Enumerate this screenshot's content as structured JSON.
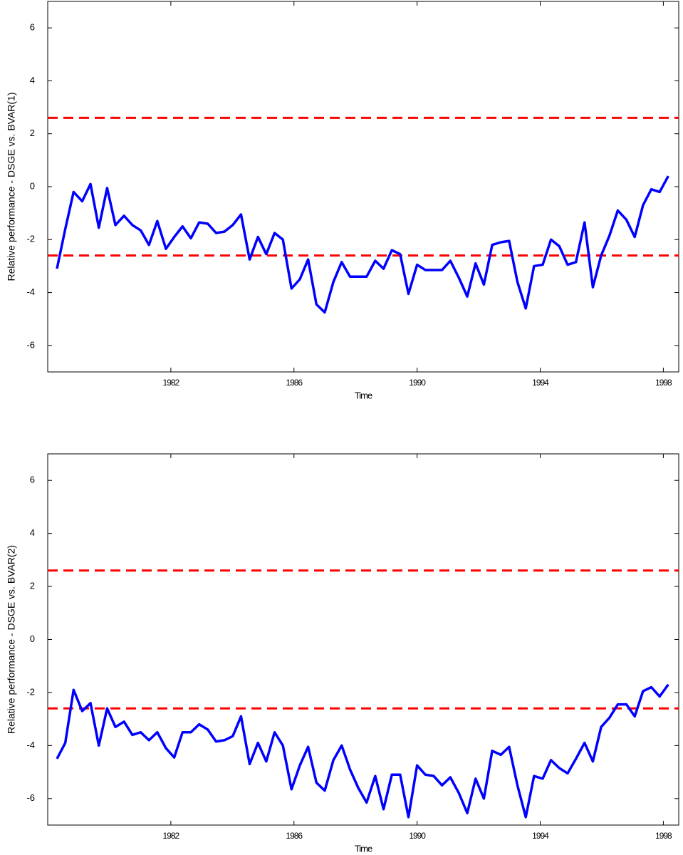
{
  "chart_data": [
    {
      "type": "line",
      "ylabel": "Relative performance - DSGE vs. BVAR(1)",
      "xlabel": "Time",
      "xlim": [
        1978,
        1998.5
      ],
      "xticks": [
        1982,
        1986,
        1990,
        1994,
        1998
      ],
      "ylim": [
        -7,
        7
      ],
      "yticks": [
        -6,
        -4,
        -2,
        0,
        2,
        4,
        6
      ],
      "x": [
        1978.3,
        1978.57,
        1978.84,
        1979.12,
        1979.39,
        1979.66,
        1979.93,
        1980.2,
        1980.48,
        1980.75,
        1981.02,
        1981.29,
        1981.56,
        1981.84,
        1982.11,
        1982.38,
        1982.65,
        1982.92,
        1983.2,
        1983.47,
        1983.74,
        1984.01,
        1984.28,
        1984.56,
        1984.83,
        1985.1,
        1985.37,
        1985.64,
        1985.92,
        1986.19,
        1986.46,
        1986.73,
        1987.0,
        1987.28,
        1987.55,
        1987.82,
        1988.09,
        1988.36,
        1988.64,
        1988.91,
        1989.18,
        1989.45,
        1989.72,
        1990.0,
        1990.27,
        1990.54,
        1990.81,
        1991.08,
        1991.36,
        1991.63,
        1991.9,
        1992.17,
        1992.44,
        1992.72,
        1992.99,
        1993.26,
        1993.53,
        1993.8,
        1994.08,
        1994.35,
        1994.62,
        1994.89,
        1995.16,
        1995.44,
        1995.71,
        1995.98,
        1996.25,
        1996.52,
        1996.8,
        1997.07,
        1997.34,
        1997.61,
        1997.88,
        1998.16
      ],
      "values": [
        -3.1,
        -1.6,
        -0.2,
        -0.55,
        0.1,
        -1.55,
        -0.05,
        -1.45,
        -1.1,
        -1.45,
        -1.65,
        -2.2,
        -1.3,
        -2.35,
        -1.9,
        -1.5,
        -1.95,
        -1.35,
        -1.4,
        -1.75,
        -1.7,
        -1.45,
        -1.05,
        -2.75,
        -1.9,
        -2.55,
        -1.75,
        -2.0,
        -3.85,
        -3.5,
        -2.75,
        -4.45,
        -4.75,
        -3.6,
        -2.85,
        -3.4,
        -3.4,
        -3.4,
        -2.8,
        -3.1,
        -2.4,
        -2.55,
        -4.05,
        -2.95,
        -3.15,
        -3.15,
        -3.15,
        -2.8,
        -3.45,
        -4.15,
        -2.9,
        -3.7,
        -2.2,
        -2.1,
        -2.05,
        -3.6,
        -4.6,
        -3.0,
        -2.95,
        -2.0,
        -2.25,
        -2.95,
        -2.85,
        -1.35,
        -3.8,
        -2.6,
        -1.85,
        -0.9,
        -1.25,
        -1.9,
        -0.7,
        -0.1,
        -0.2,
        0.4
      ],
      "color": "#0000ff",
      "reference_lines": [
        2.6,
        -2.6
      ],
      "reference_color": "#ff0000"
    },
    {
      "type": "line",
      "ylabel": "Relative performance - DSGE vs. BVAR(2)",
      "xlabel": "Time",
      "xlim": [
        1978,
        1998.5
      ],
      "xticks": [
        1982,
        1986,
        1990,
        1994,
        1998
      ],
      "ylim": [
        -7,
        7
      ],
      "yticks": [
        -6,
        -4,
        -2,
        0,
        2,
        4,
        6
      ],
      "x": [
        1978.3,
        1978.57,
        1978.84,
        1979.12,
        1979.39,
        1979.66,
        1979.93,
        1980.2,
        1980.48,
        1980.75,
        1981.02,
        1981.29,
        1981.56,
        1981.84,
        1982.11,
        1982.38,
        1982.65,
        1982.92,
        1983.2,
        1983.47,
        1983.74,
        1984.01,
        1984.28,
        1984.56,
        1984.83,
        1985.1,
        1985.37,
        1985.64,
        1985.92,
        1986.19,
        1986.46,
        1986.73,
        1987.0,
        1987.28,
        1987.55,
        1987.82,
        1988.09,
        1988.36,
        1988.64,
        1988.91,
        1989.18,
        1989.45,
        1989.72,
        1990.0,
        1990.27,
        1990.54,
        1990.81,
        1991.08,
        1991.36,
        1991.63,
        1991.9,
        1992.17,
        1992.44,
        1992.72,
        1992.99,
        1993.26,
        1993.53,
        1993.8,
        1994.08,
        1994.35,
        1994.62,
        1994.89,
        1995.16,
        1995.44,
        1995.71,
        1995.98,
        1996.25,
        1996.52,
        1996.8,
        1997.07,
        1997.34,
        1997.61,
        1997.88,
        1998.16
      ],
      "values": [
        -4.5,
        -3.9,
        -1.9,
        -2.7,
        -2.4,
        -4.0,
        -2.6,
        -3.3,
        -3.1,
        -3.6,
        -3.5,
        -3.8,
        -3.5,
        -4.1,
        -4.45,
        -3.5,
        -3.5,
        -3.2,
        -3.4,
        -3.85,
        -3.8,
        -3.65,
        -2.9,
        -4.7,
        -3.9,
        -4.6,
        -3.5,
        -4.0,
        -5.65,
        -4.75,
        -4.05,
        -5.4,
        -5.7,
        -4.55,
        -4.0,
        -4.9,
        -5.6,
        -6.15,
        -5.15,
        -6.4,
        -5.1,
        -5.1,
        -6.7,
        -4.75,
        -5.1,
        -5.15,
        -5.5,
        -5.2,
        -5.8,
        -6.55,
        -5.25,
        -6.0,
        -4.2,
        -4.35,
        -4.05,
        -5.5,
        -6.7,
        -5.15,
        -5.25,
        -4.55,
        -4.85,
        -5.05,
        -4.5,
        -3.9,
        -4.6,
        -3.3,
        -2.95,
        -2.45,
        -2.45,
        -2.9,
        -1.95,
        -1.8,
        -2.15,
        -1.7
      ],
      "color": "#0000ff",
      "reference_lines": [
        2.6,
        -2.6
      ],
      "reference_color": "#ff0000"
    }
  ]
}
